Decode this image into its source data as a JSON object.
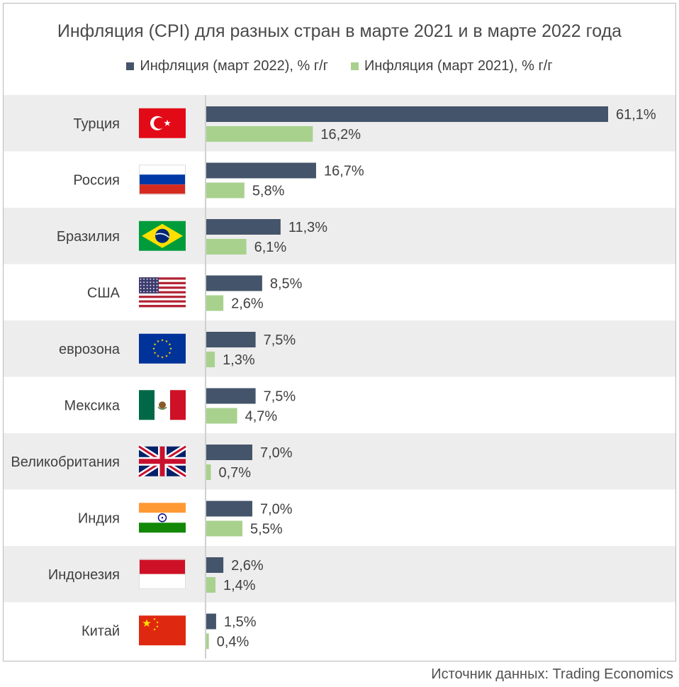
{
  "chart_data": {
    "type": "bar",
    "orientation": "horizontal",
    "title": "Инфляция (CPI) для разных стран в марте 2021 и в марте 2022 года",
    "categories": [
      "Турция",
      "Россия",
      "Бразилия",
      "США",
      "еврозона",
      "Мексика",
      "Великобритания",
      "Индия",
      "Индонезия",
      "Китай"
    ],
    "flags": [
      "turkey-flag",
      "russia-flag",
      "brazil-flag",
      "usa-flag",
      "eu-flag",
      "mexico-flag",
      "uk-flag",
      "india-flag",
      "indonesia-flag",
      "china-flag"
    ],
    "series": [
      {
        "name": "Инфляция (март 2022), % г/г",
        "color": "#44546a",
        "values": [
          61.1,
          16.7,
          11.3,
          8.5,
          7.5,
          7.5,
          7.0,
          7.0,
          2.6,
          1.5
        ],
        "labels": [
          "61,1%",
          "16,7%",
          "11,3%",
          "8,5%",
          "7,5%",
          "7,5%",
          "7,0%",
          "7,0%",
          "2,6%",
          "1,5%"
        ]
      },
      {
        "name": "Инфляция (март 2021), % г/г",
        "color": "#a9d18e",
        "values": [
          16.2,
          5.8,
          6.1,
          2.6,
          1.3,
          4.7,
          0.7,
          5.5,
          1.4,
          0.4
        ],
        "labels": [
          "16,2%",
          "5,8%",
          "6,1%",
          "2,6%",
          "1,3%",
          "4,7%",
          "0,7%",
          "5,5%",
          "1,4%",
          "0,4%"
        ]
      }
    ],
    "xlim": [
      0,
      61.1
    ],
    "legend_position": "top-center",
    "row_band_color": "#ededed",
    "grid": false
  },
  "source": "Источник данных: Trading Economics"
}
